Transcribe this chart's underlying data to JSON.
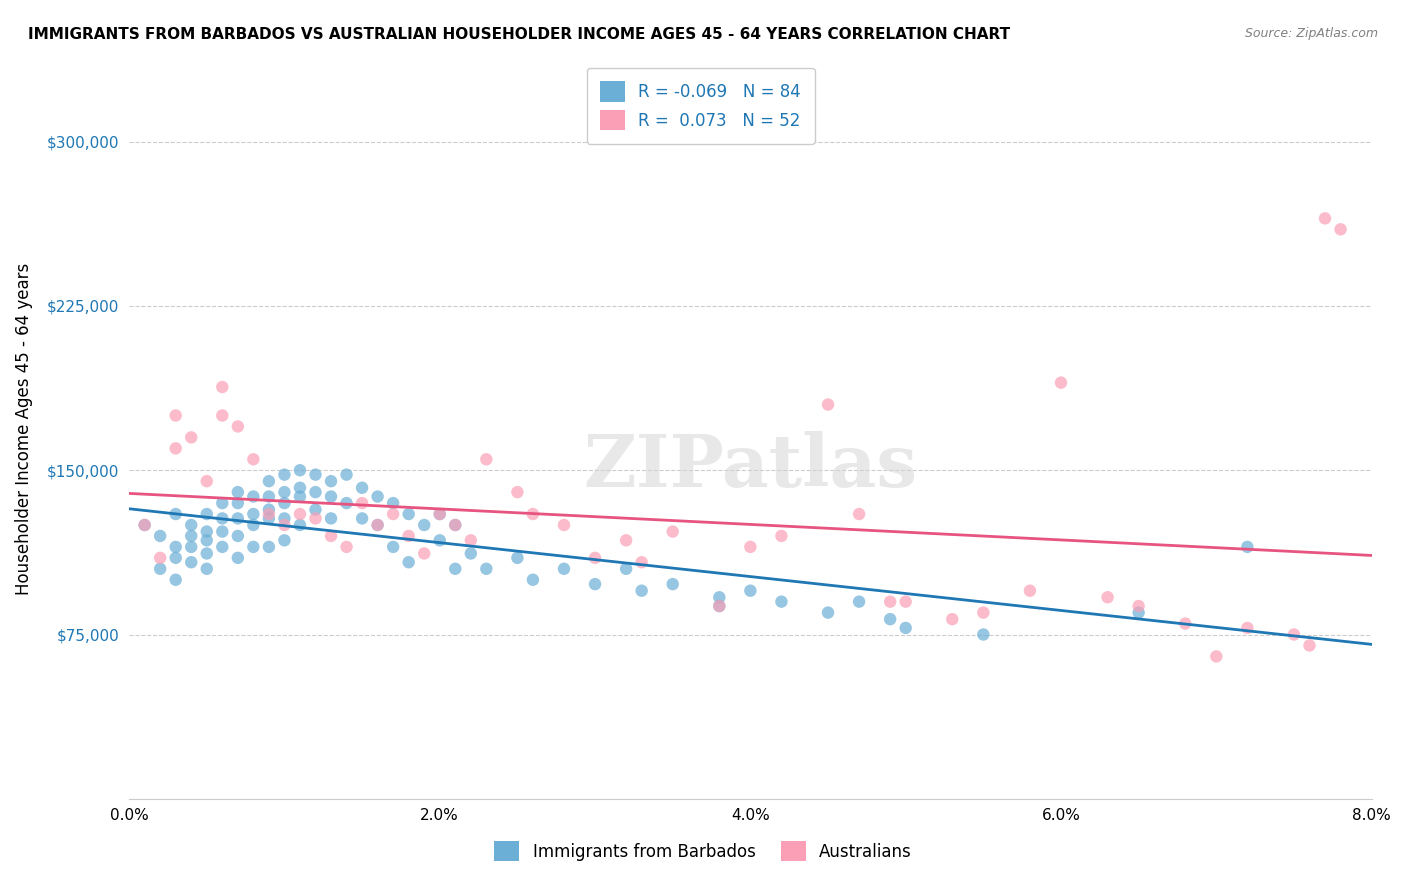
{
  "title": "IMMIGRANTS FROM BARBADOS VS AUSTRALIAN HOUSEHOLDER INCOME AGES 45 - 64 YEARS CORRELATION CHART",
  "source": "Source: ZipAtlas.com",
  "xlabel": "",
  "ylabel": "Householder Income Ages 45 - 64 years",
  "xlim": [
    0.0,
    0.08
  ],
  "ylim": [
    0,
    337500
  ],
  "yticks": [
    0,
    75000,
    150000,
    225000,
    300000
  ],
  "ytick_labels": [
    "",
    "$75,000",
    "$150,000",
    "$225,000",
    "$300,000"
  ],
  "xticks": [
    0.0,
    0.01,
    0.02,
    0.03,
    0.04,
    0.05,
    0.06,
    0.07,
    0.08
  ],
  "xtick_labels": [
    "0.0%",
    "",
    "2.0%",
    "",
    "4.0%",
    "",
    "6.0%",
    "",
    "8.0%"
  ],
  "blue_color": "#6baed6",
  "pink_color": "#fa9fb5",
  "line_blue": "#1f77b4",
  "line_pink": "#e75480",
  "blue_R": -0.069,
  "blue_N": 84,
  "pink_R": 0.073,
  "pink_N": 52,
  "watermark": "ZIPatlas",
  "legend_label_blue": "Immigrants from Barbados",
  "legend_label_pink": "Australians",
  "blue_x": [
    0.001,
    0.002,
    0.002,
    0.003,
    0.003,
    0.003,
    0.003,
    0.004,
    0.004,
    0.004,
    0.004,
    0.005,
    0.005,
    0.005,
    0.005,
    0.005,
    0.006,
    0.006,
    0.006,
    0.006,
    0.007,
    0.007,
    0.007,
    0.007,
    0.007,
    0.008,
    0.008,
    0.008,
    0.008,
    0.009,
    0.009,
    0.009,
    0.009,
    0.009,
    0.01,
    0.01,
    0.01,
    0.01,
    0.01,
    0.011,
    0.011,
    0.011,
    0.011,
    0.012,
    0.012,
    0.012,
    0.013,
    0.013,
    0.013,
    0.014,
    0.014,
    0.015,
    0.015,
    0.016,
    0.016,
    0.017,
    0.017,
    0.018,
    0.018,
    0.019,
    0.02,
    0.02,
    0.021,
    0.021,
    0.022,
    0.023,
    0.025,
    0.026,
    0.028,
    0.03,
    0.032,
    0.033,
    0.035,
    0.038,
    0.038,
    0.04,
    0.042,
    0.045,
    0.047,
    0.049,
    0.05,
    0.055,
    0.065,
    0.072
  ],
  "blue_y": [
    125000,
    120000,
    105000,
    130000,
    115000,
    110000,
    100000,
    125000,
    120000,
    115000,
    108000,
    130000,
    122000,
    118000,
    112000,
    105000,
    135000,
    128000,
    122000,
    115000,
    140000,
    135000,
    128000,
    120000,
    110000,
    138000,
    130000,
    125000,
    115000,
    145000,
    138000,
    132000,
    128000,
    115000,
    148000,
    140000,
    135000,
    128000,
    118000,
    150000,
    142000,
    138000,
    125000,
    148000,
    140000,
    132000,
    145000,
    138000,
    128000,
    148000,
    135000,
    142000,
    128000,
    138000,
    125000,
    135000,
    115000,
    130000,
    108000,
    125000,
    130000,
    118000,
    125000,
    105000,
    112000,
    105000,
    110000,
    100000,
    105000,
    98000,
    105000,
    95000,
    98000,
    92000,
    88000,
    95000,
    90000,
    85000,
    90000,
    82000,
    78000,
    75000,
    85000,
    115000
  ],
  "pink_x": [
    0.001,
    0.002,
    0.003,
    0.003,
    0.004,
    0.005,
    0.006,
    0.006,
    0.007,
    0.008,
    0.009,
    0.01,
    0.011,
    0.012,
    0.013,
    0.014,
    0.015,
    0.016,
    0.017,
    0.018,
    0.019,
    0.02,
    0.021,
    0.022,
    0.023,
    0.025,
    0.026,
    0.028,
    0.03,
    0.032,
    0.033,
    0.035,
    0.038,
    0.04,
    0.042,
    0.045,
    0.047,
    0.049,
    0.05,
    0.053,
    0.055,
    0.058,
    0.06,
    0.063,
    0.065,
    0.068,
    0.07,
    0.072,
    0.075,
    0.076,
    0.077,
    0.078
  ],
  "pink_y": [
    125000,
    110000,
    175000,
    160000,
    165000,
    145000,
    188000,
    175000,
    170000,
    155000,
    130000,
    125000,
    130000,
    128000,
    120000,
    115000,
    135000,
    125000,
    130000,
    120000,
    112000,
    130000,
    125000,
    118000,
    155000,
    140000,
    130000,
    125000,
    110000,
    118000,
    108000,
    122000,
    88000,
    115000,
    120000,
    180000,
    130000,
    90000,
    90000,
    82000,
    85000,
    95000,
    190000,
    92000,
    88000,
    80000,
    65000,
    78000,
    75000,
    70000,
    265000,
    260000
  ]
}
